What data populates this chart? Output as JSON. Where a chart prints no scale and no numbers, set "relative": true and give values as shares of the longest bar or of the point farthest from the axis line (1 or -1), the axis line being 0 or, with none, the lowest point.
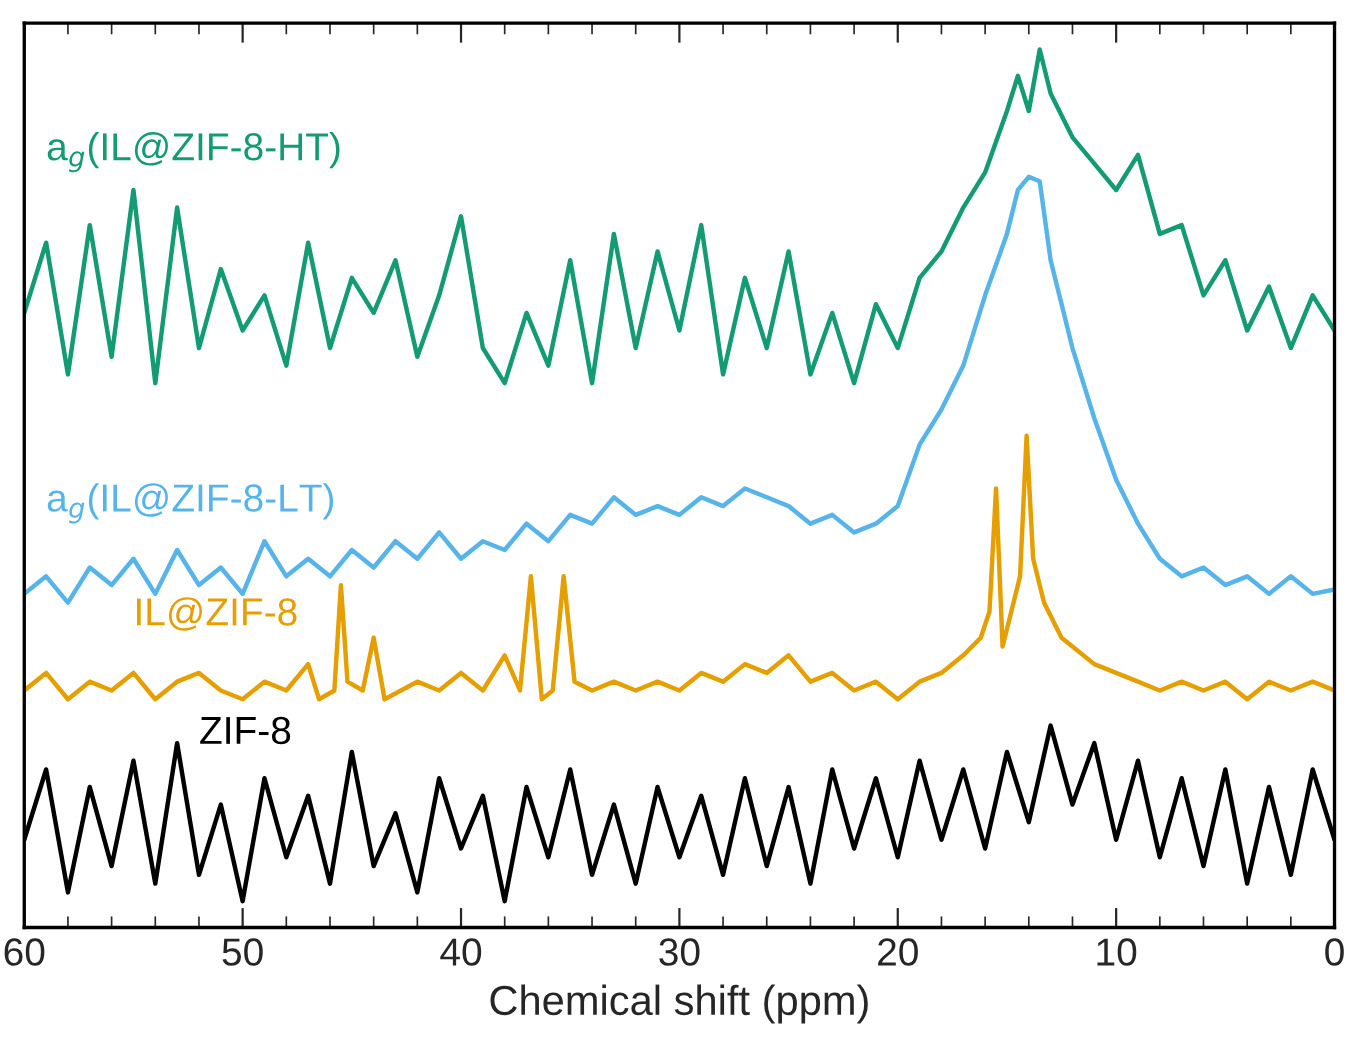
{
  "chart_data": {
    "type": "line",
    "xlabel": "Chemical shift (ppm)",
    "relative": true,
    "xlim": [
      60,
      0
    ],
    "xticks": [
      60,
      50,
      40,
      30,
      20,
      10,
      0
    ],
    "x": [
      60,
      59,
      58,
      57,
      56,
      55,
      54,
      53,
      52,
      51,
      50,
      49,
      48,
      47,
      46,
      45,
      44,
      43,
      42,
      41,
      40,
      39,
      38,
      37,
      36,
      35,
      34,
      33,
      32,
      31,
      30,
      29,
      28,
      27,
      26,
      25,
      24,
      23,
      22,
      21,
      20,
      19,
      18,
      17,
      16,
      15,
      14,
      13,
      12,
      11,
      10,
      9,
      8,
      7,
      6,
      5,
      4,
      3,
      2,
      1,
      0
    ],
    "series": [
      {
        "name": "a$_{g}$(IL@ZIF-8-HT)",
        "color": "#139b74",
        "x": [
          60,
          59,
          58,
          57,
          56,
          55,
          54,
          53,
          52,
          51,
          50,
          49,
          48,
          47,
          46,
          45,
          44,
          43,
          42,
          41,
          40,
          39,
          38,
          37,
          36,
          35,
          34,
          33,
          32,
          31,
          30,
          29,
          28,
          27,
          26,
          25,
          24,
          23,
          22,
          21,
          20,
          19,
          18,
          17,
          16,
          15,
          14.5,
          14,
          13.5,
          13,
          12,
          11,
          10,
          9,
          8,
          7,
          6,
          5,
          4,
          3,
          2,
          1,
          0
        ],
        "values": [
          0.7,
          0.78,
          0.63,
          0.8,
          0.65,
          0.84,
          0.62,
          0.82,
          0.66,
          0.75,
          0.68,
          0.72,
          0.64,
          0.78,
          0.66,
          0.74,
          0.7,
          0.76,
          0.65,
          0.72,
          0.81,
          0.66,
          0.62,
          0.7,
          0.64,
          0.76,
          0.62,
          0.79,
          0.66,
          0.77,
          0.68,
          0.8,
          0.63,
          0.74,
          0.66,
          0.77,
          0.63,
          0.7,
          0.62,
          0.71,
          0.66,
          0.74,
          0.77,
          0.82,
          0.86,
          0.93,
          0.97,
          0.93,
          1.0,
          0.95,
          0.9,
          0.87,
          0.84,
          0.88,
          0.79,
          0.8,
          0.72,
          0.76,
          0.68,
          0.73,
          0.66,
          0.72,
          0.68
        ]
      },
      {
        "name": "a$_{g}$(IL@ZIF-8-LT)",
        "color": "#56b4e9",
        "x": [
          60,
          59,
          58,
          57,
          56,
          55,
          54,
          53,
          52,
          51,
          50,
          49,
          48,
          47,
          46,
          45,
          44,
          43,
          42,
          41,
          40,
          39,
          38,
          37,
          36,
          35,
          34,
          33,
          32,
          31,
          30,
          29,
          28,
          27,
          26,
          25,
          24,
          23,
          22,
          21,
          20,
          19,
          18,
          17,
          16,
          15,
          14.5,
          14,
          13.5,
          13,
          12,
          11,
          10,
          9,
          8,
          7,
          6,
          5,
          4,
          3,
          2,
          1,
          0
        ],
        "values": [
          0.38,
          0.4,
          0.37,
          0.41,
          0.39,
          0.42,
          0.38,
          0.43,
          0.39,
          0.41,
          0.38,
          0.44,
          0.4,
          0.42,
          0.4,
          0.43,
          0.41,
          0.44,
          0.42,
          0.45,
          0.42,
          0.44,
          0.43,
          0.46,
          0.44,
          0.47,
          0.46,
          0.49,
          0.47,
          0.48,
          0.47,
          0.49,
          0.48,
          0.5,
          0.49,
          0.48,
          0.46,
          0.47,
          0.45,
          0.46,
          0.48,
          0.55,
          0.59,
          0.64,
          0.72,
          0.79,
          0.84,
          0.855,
          0.85,
          0.76,
          0.66,
          0.58,
          0.51,
          0.46,
          0.42,
          0.4,
          0.41,
          0.39,
          0.4,
          0.38,
          0.4,
          0.38,
          0.385
        ]
      },
      {
        "name": "IL@ZIF-8",
        "color": "#e69f00",
        "x": [
          60,
          59,
          58,
          57,
          56,
          55,
          54,
          53,
          52,
          51,
          50,
          49,
          48,
          47,
          46.5,
          45.8,
          45.5,
          45.2,
          44.5,
          44,
          43.5,
          42,
          41,
          40,
          39,
          38,
          37.3,
          36.8,
          36.3,
          35.8,
          35.3,
          34.8,
          34,
          33,
          32,
          31,
          30,
          29,
          28,
          27,
          26,
          25,
          24,
          23,
          22,
          21,
          20,
          19,
          18,
          17,
          16.2,
          15.8,
          15.5,
          15.2,
          14.8,
          14.4,
          14.1,
          13.8,
          13.3,
          12.5,
          12,
          11,
          10,
          9,
          8,
          7,
          6,
          5,
          4,
          3,
          2,
          1,
          0
        ],
        "values": [
          0.27,
          0.29,
          0.26,
          0.28,
          0.27,
          0.29,
          0.26,
          0.28,
          0.29,
          0.27,
          0.26,
          0.28,
          0.27,
          0.3,
          0.26,
          0.27,
          0.39,
          0.28,
          0.27,
          0.33,
          0.26,
          0.28,
          0.27,
          0.29,
          0.27,
          0.31,
          0.27,
          0.4,
          0.26,
          0.27,
          0.4,
          0.28,
          0.27,
          0.28,
          0.27,
          0.28,
          0.27,
          0.29,
          0.28,
          0.3,
          0.29,
          0.31,
          0.28,
          0.29,
          0.27,
          0.28,
          0.26,
          0.28,
          0.29,
          0.31,
          0.33,
          0.36,
          0.5,
          0.32,
          0.36,
          0.4,
          0.56,
          0.42,
          0.37,
          0.33,
          0.32,
          0.3,
          0.29,
          0.28,
          0.27,
          0.28,
          0.27,
          0.28,
          0.26,
          0.28,
          0.27,
          0.28,
          0.27
        ]
      },
      {
        "name": "ZIF-8",
        "color": "#000000",
        "values": [
          0.1,
          0.18,
          0.04,
          0.16,
          0.07,
          0.19,
          0.05,
          0.21,
          0.06,
          0.14,
          0.03,
          0.17,
          0.08,
          0.15,
          0.05,
          0.2,
          0.07,
          0.13,
          0.04,
          0.17,
          0.09,
          0.15,
          0.03,
          0.16,
          0.08,
          0.18,
          0.06,
          0.14,
          0.05,
          0.16,
          0.08,
          0.15,
          0.06,
          0.17,
          0.07,
          0.16,
          0.05,
          0.18,
          0.09,
          0.17,
          0.08,
          0.19,
          0.1,
          0.18,
          0.09,
          0.2,
          0.12,
          0.23,
          0.14,
          0.21,
          0.1,
          0.19,
          0.08,
          0.17,
          0.07,
          0.18,
          0.05,
          0.16,
          0.06,
          0.18,
          0.1
        ]
      }
    ]
  }
}
